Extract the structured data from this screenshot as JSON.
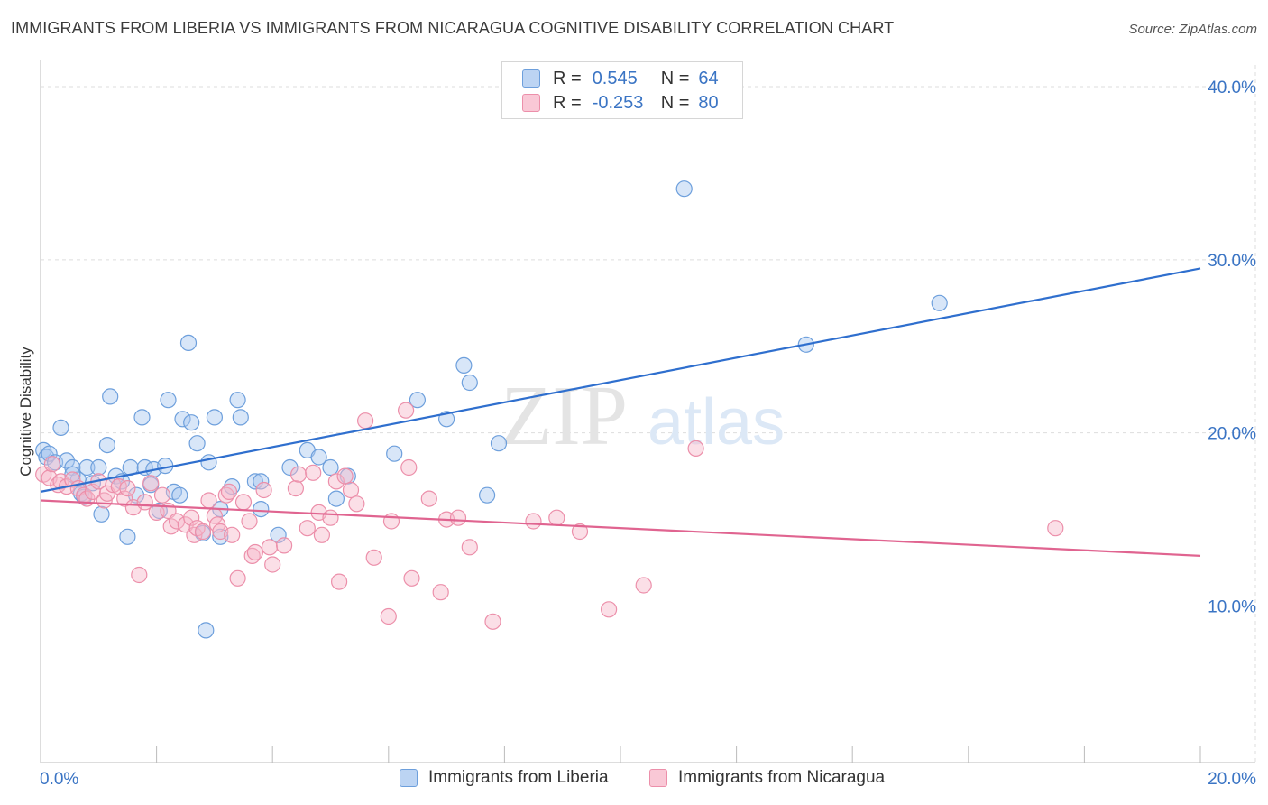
{
  "title": "IMMIGRANTS FROM LIBERIA VS IMMIGRANTS FROM NICARAGUA COGNITIVE DISABILITY CORRELATION CHART",
  "source": "Source: ZipAtlas.com",
  "watermark": {
    "zip": "ZIP",
    "atlas": "atlas"
  },
  "legend_top": [
    {
      "r_label": "R =",
      "r_value": "0.545",
      "n_label": "N =",
      "n_value": "64"
    },
    {
      "r_label": "R =",
      "r_value": "-0.253",
      "n_label": "N =",
      "n_value": "80"
    }
  ],
  "legend_bottom": [
    {
      "label": "Immigrants from Liberia"
    },
    {
      "label": "Immigrants from Nicaragua"
    }
  ],
  "colors": {
    "liberia_fill": "#a9c8f0",
    "liberia_stroke": "#6d9fdc",
    "liberia_line": "#2f6fce",
    "nicaragua_fill": "#f7b8ca",
    "nicaragua_stroke": "#ec8faa",
    "nicaragua_line": "#e06490",
    "tick_label": "#3a74c4",
    "grid": "#dddddd"
  },
  "chart_data": {
    "type": "scatter",
    "title": "IMMIGRANTS FROM LIBERIA VS IMMIGRANTS FROM NICARAGUA COGNITIVE DISABILITY CORRELATION CHART",
    "xlabel": "",
    "ylabel": "Cognitive Disability",
    "xlim": [
      0,
      20
    ],
    "ylim": [
      0,
      42
    ],
    "x_tick_labels": [
      "0.0%",
      "20.0%"
    ],
    "y_ticks": [
      10,
      20,
      30,
      40
    ],
    "y_tick_labels": [
      "10.0%",
      "20.0%",
      "30.0%",
      "40.0%"
    ],
    "grid": true,
    "legend_position": "top-center",
    "series": [
      {
        "name": "Immigrants from Liberia",
        "r": 0.545,
        "n": 64,
        "trend": [
          [
            0.0,
            16.6
          ],
          [
            20.0,
            29.5
          ]
        ],
        "points": [
          [
            0.05,
            19.0
          ],
          [
            0.1,
            18.6
          ],
          [
            0.15,
            18.8
          ],
          [
            0.25,
            18.3
          ],
          [
            0.35,
            20.3
          ],
          [
            0.45,
            18.4
          ],
          [
            0.55,
            18.0
          ],
          [
            0.65,
            17.3
          ],
          [
            0.7,
            16.5
          ],
          [
            0.75,
            16.3
          ],
          [
            0.8,
            18.0
          ],
          [
            0.9,
            17.1
          ],
          [
            1.0,
            18.0
          ],
          [
            1.05,
            15.3
          ],
          [
            1.15,
            19.3
          ],
          [
            1.2,
            22.1
          ],
          [
            1.3,
            17.5
          ],
          [
            1.4,
            17.2
          ],
          [
            1.5,
            14.0
          ],
          [
            1.55,
            18.0
          ],
          [
            1.65,
            16.4
          ],
          [
            1.75,
            20.9
          ],
          [
            1.8,
            18.0
          ],
          [
            1.9,
            17.0
          ],
          [
            1.95,
            17.9
          ],
          [
            2.05,
            15.5
          ],
          [
            2.15,
            18.1
          ],
          [
            2.2,
            21.9
          ],
          [
            2.3,
            16.6
          ],
          [
            2.4,
            16.4
          ],
          [
            2.45,
            20.8
          ],
          [
            2.55,
            25.2
          ],
          [
            2.6,
            20.6
          ],
          [
            2.7,
            19.4
          ],
          [
            2.8,
            14.2
          ],
          [
            2.85,
            8.6
          ],
          [
            2.9,
            18.3
          ],
          [
            3.0,
            20.9
          ],
          [
            3.1,
            15.6
          ],
          [
            3.1,
            14.0
          ],
          [
            3.3,
            16.9
          ],
          [
            3.4,
            21.9
          ],
          [
            3.45,
            20.9
          ],
          [
            3.7,
            17.2
          ],
          [
            3.8,
            17.2
          ],
          [
            3.8,
            15.6
          ],
          [
            4.1,
            14.1
          ],
          [
            4.3,
            18.0
          ],
          [
            4.6,
            19.0
          ],
          [
            4.8,
            18.6
          ],
          [
            5.0,
            18.0
          ],
          [
            5.1,
            16.2
          ],
          [
            5.3,
            17.5
          ],
          [
            6.1,
            18.8
          ],
          [
            6.5,
            21.9
          ],
          [
            7.0,
            20.8
          ],
          [
            7.3,
            23.9
          ],
          [
            7.4,
            22.9
          ],
          [
            7.7,
            16.4
          ],
          [
            7.9,
            19.4
          ],
          [
            11.1,
            34.1
          ],
          [
            13.2,
            25.1
          ],
          [
            15.5,
            27.5
          ],
          [
            0.55,
            17.6
          ]
        ]
      },
      {
        "name": "Immigrants from Nicaragua",
        "r": -0.253,
        "n": 80,
        "trend": [
          [
            0.0,
            16.1
          ],
          [
            20.0,
            12.9
          ]
        ],
        "points": [
          [
            0.05,
            17.6
          ],
          [
            0.15,
            17.4
          ],
          [
            0.2,
            18.2
          ],
          [
            0.3,
            17.0
          ],
          [
            0.35,
            17.2
          ],
          [
            0.45,
            16.9
          ],
          [
            0.55,
            17.3
          ],
          [
            0.65,
            16.8
          ],
          [
            0.75,
            16.4
          ],
          [
            0.8,
            16.2
          ],
          [
            0.9,
            16.6
          ],
          [
            1.0,
            17.2
          ],
          [
            1.1,
            16.1
          ],
          [
            1.15,
            16.5
          ],
          [
            1.25,
            17.0
          ],
          [
            1.35,
            16.9
          ],
          [
            1.45,
            16.2
          ],
          [
            1.5,
            16.8
          ],
          [
            1.6,
            15.7
          ],
          [
            1.7,
            11.8
          ],
          [
            1.8,
            16.0
          ],
          [
            1.9,
            17.1
          ],
          [
            2.0,
            15.4
          ],
          [
            2.1,
            16.4
          ],
          [
            2.2,
            15.5
          ],
          [
            2.25,
            14.6
          ],
          [
            2.35,
            14.9
          ],
          [
            2.5,
            14.7
          ],
          [
            2.6,
            15.1
          ],
          [
            2.65,
            14.1
          ],
          [
            2.7,
            14.5
          ],
          [
            2.8,
            14.3
          ],
          [
            2.9,
            16.1
          ],
          [
            3.0,
            15.2
          ],
          [
            3.05,
            14.7
          ],
          [
            3.1,
            14.3
          ],
          [
            3.2,
            16.4
          ],
          [
            3.25,
            16.6
          ],
          [
            3.3,
            14.1
          ],
          [
            3.4,
            11.6
          ],
          [
            3.5,
            16.0
          ],
          [
            3.6,
            14.9
          ],
          [
            3.65,
            12.9
          ],
          [
            3.7,
            13.1
          ],
          [
            3.85,
            16.7
          ],
          [
            3.95,
            13.4
          ],
          [
            4.0,
            12.4
          ],
          [
            4.2,
            13.5
          ],
          [
            4.4,
            16.8
          ],
          [
            4.45,
            17.6
          ],
          [
            4.6,
            14.5
          ],
          [
            4.7,
            17.7
          ],
          [
            4.8,
            15.4
          ],
          [
            4.85,
            14.1
          ],
          [
            5.0,
            15.1
          ],
          [
            5.1,
            17.2
          ],
          [
            5.15,
            11.4
          ],
          [
            5.25,
            17.5
          ],
          [
            5.35,
            16.7
          ],
          [
            5.45,
            15.9
          ],
          [
            5.6,
            20.7
          ],
          [
            5.75,
            12.8
          ],
          [
            6.0,
            9.4
          ],
          [
            6.05,
            14.9
          ],
          [
            6.3,
            21.3
          ],
          [
            6.35,
            18.0
          ],
          [
            6.4,
            11.6
          ],
          [
            6.7,
            16.2
          ],
          [
            6.9,
            10.8
          ],
          [
            7.0,
            15.0
          ],
          [
            7.2,
            15.1
          ],
          [
            7.4,
            13.4
          ],
          [
            7.8,
            9.1
          ],
          [
            8.5,
            14.9
          ],
          [
            8.9,
            15.1
          ],
          [
            9.3,
            14.3
          ],
          [
            9.8,
            9.8
          ],
          [
            10.4,
            11.2
          ],
          [
            11.3,
            19.1
          ],
          [
            17.5,
            14.5
          ]
        ]
      }
    ]
  }
}
